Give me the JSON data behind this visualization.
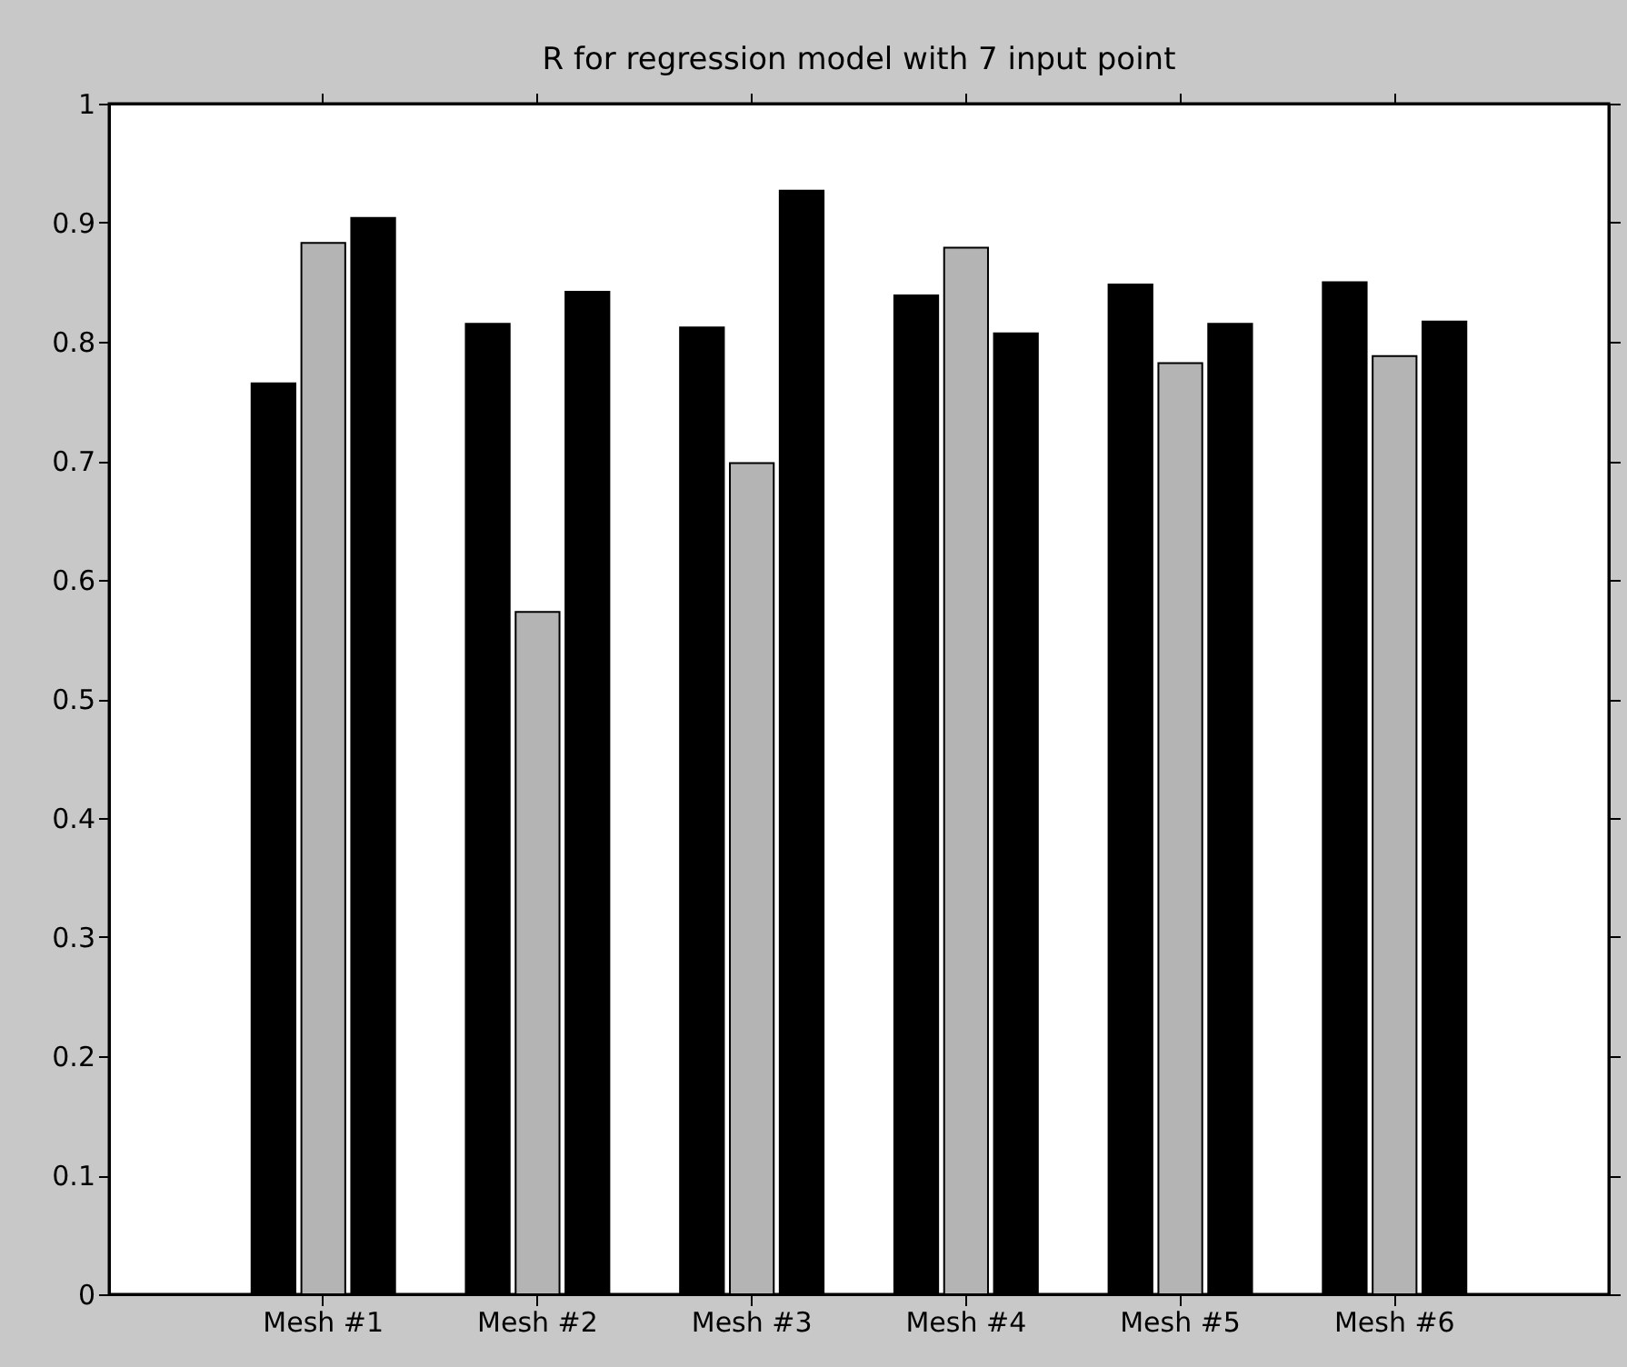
{
  "chart_data": {
    "type": "bar",
    "title": "R for regression model with 7 input point",
    "categories": [
      "Mesh #1",
      "Mesh #2",
      "Mesh #3",
      "Mesh #4",
      "Mesh #5",
      "Mesh #6"
    ],
    "series": [
      {
        "color": "#000000",
        "values": [
          0.765,
          0.815,
          0.812,
          0.839,
          0.848,
          0.85
        ]
      },
      {
        "color": "#b4b4b4",
        "values": [
          0.883,
          0.573,
          0.698,
          0.879,
          0.782,
          0.788
        ]
      },
      {
        "color": "#000000",
        "values": [
          0.904,
          0.842,
          0.927,
          0.807,
          0.815,
          0.817
        ]
      }
    ],
    "ylim": [
      0,
      1
    ],
    "yticks": [
      0,
      0.1,
      0.2,
      0.3,
      0.4,
      0.5,
      0.6,
      0.7,
      0.8,
      0.9,
      1
    ],
    "grid": false
  }
}
